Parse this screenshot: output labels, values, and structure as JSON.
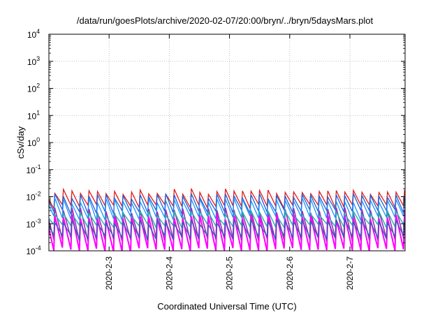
{
  "chart_data": {
    "type": "line",
    "title": "/data/run/goesPlots/archive/2020-02-07/20:00/bryn/../bryn/5daysMars.plot",
    "xlabel": "Coordinated Universal Time (UTC)",
    "ylabel": "cSv/day",
    "y_scale": "log",
    "ylim": [
      0.0001,
      10000
    ],
    "xlim": [
      "2020-02-02T00:00",
      "2020-02-07T22:00"
    ],
    "grid": true,
    "legend": "none",
    "y_ticks": [
      {
        "base": "10",
        "exp": "-4"
      },
      {
        "base": "10",
        "exp": "-3"
      },
      {
        "base": "10",
        "exp": "-2"
      },
      {
        "base": "10",
        "exp": "-1"
      },
      {
        "base": "10",
        "exp": "0"
      },
      {
        "base": "10",
        "exp": "1"
      },
      {
        "base": "10",
        "exp": "2"
      },
      {
        "base": "10",
        "exp": "3"
      },
      {
        "base": "10",
        "exp": "4"
      }
    ],
    "x_ticks": [
      {
        "label": "2020-2-3",
        "date": "2020-02-03T00:00"
      },
      {
        "label": "2020-2-4",
        "date": "2020-02-04T00:00"
      },
      {
        "label": "2020-2-5",
        "date": "2020-02-05T00:00"
      },
      {
        "label": "2020-2-6",
        "date": "2020-02-06T00:00"
      },
      {
        "label": "2020-2-7",
        "date": "2020-02-07T00:00"
      }
    ],
    "pattern_note": "sawtooth; period ~3.4 h",
    "series": [
      {
        "color": "#e31a1c",
        "peak": 0.016,
        "trough": 0.0045,
        "width": 1.3
      },
      {
        "color": "#1f5fd8",
        "peak": 0.0105,
        "trough": 0.0028,
        "width": 1.3
      },
      {
        "color": "#1e90ff",
        "peak": 0.0072,
        "trough": 0.0016,
        "width": 1.3
      },
      {
        "color": "#9a2fb4",
        "peak": 0.0032,
        "trough": 0.00026,
        "width": 1.6
      },
      {
        "color": "#20b2aa",
        "peak": 0.0024,
        "trough": 0.00085,
        "width": 1.4
      },
      {
        "color": "#ff00ff",
        "peak": 0.0018,
        "trough": 0.00011,
        "width": 2.0
      },
      {
        "color": "#2d5fb0",
        "peak": 0.0012,
        "trough": 0.00032,
        "width": 1.3
      }
    ]
  }
}
